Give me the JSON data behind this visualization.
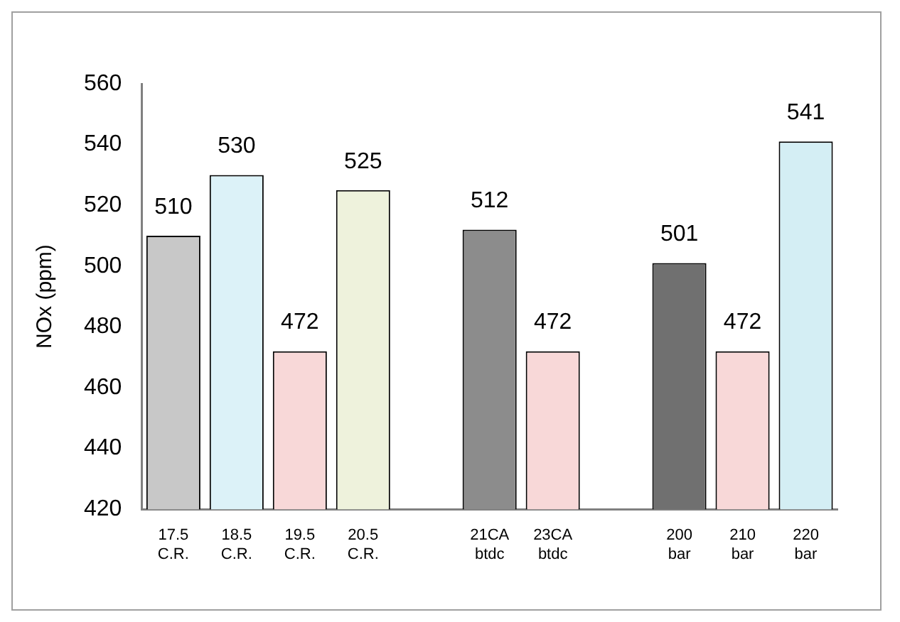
{
  "chart_data": {
    "type": "bar",
    "ylabel": "NOx (ppm)",
    "categories": [
      "17.5\nC.R.",
      "18.5\nC.R.",
      "19.5\nC.R.",
      "20.5\nC.R.",
      null,
      "21CA\nbtdc",
      "23CA\nbtdc",
      null,
      "200\nbar",
      "210\nbar",
      "220\nbar"
    ],
    "values": [
      510,
      530,
      472,
      525,
      null,
      512,
      472,
      null,
      501,
      472,
      541
    ],
    "colors": [
      "#c8c8c8",
      "#dcf2f8",
      "#f8d8d8",
      "#eef2dc",
      null,
      "#8c8c8c",
      "#f8d8d8",
      null,
      "#707070",
      "#f8d8d8",
      "#d4eef4"
    ],
    "ylim": [
      420,
      560
    ],
    "yticks": [
      420,
      440,
      460,
      480,
      500,
      520,
      540,
      560
    ],
    "grid": false,
    "legend": false,
    "data_labels": true
  }
}
